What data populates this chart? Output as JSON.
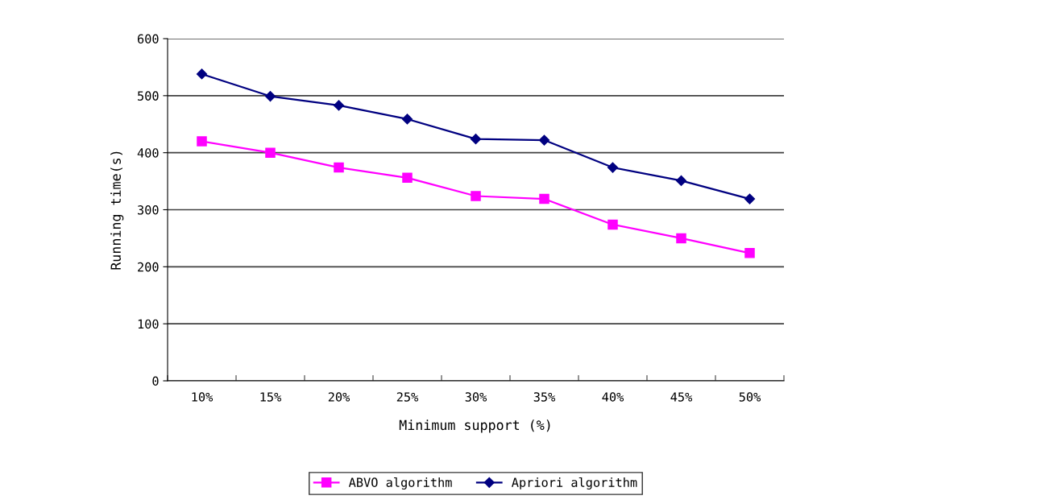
{
  "chart_data": {
    "type": "line",
    "xlabel": "Minimum support (%)",
    "ylabel": "Running time(s)",
    "categories": [
      "10%",
      "15%",
      "20%",
      "25%",
      "30%",
      "35%",
      "40%",
      "45%",
      "50%"
    ],
    "series": [
      {
        "name": "ABVO algorithm",
        "color": "#ff00ff",
        "marker": "square",
        "values": [
          420,
          400,
          374,
          356,
          324,
          319,
          274,
          250,
          224
        ]
      },
      {
        "name": "Apriori algorithm",
        "color": "#000080",
        "marker": "diamond",
        "values": [
          538,
          499,
          483,
          459,
          424,
          422,
          374,
          351,
          319
        ]
      }
    ],
    "ylim": [
      0,
      600
    ],
    "yticks": [
      0,
      100,
      200,
      300,
      400,
      500,
      600
    ],
    "grid": "y",
    "legend": "bottom",
    "line_style": "solid"
  }
}
